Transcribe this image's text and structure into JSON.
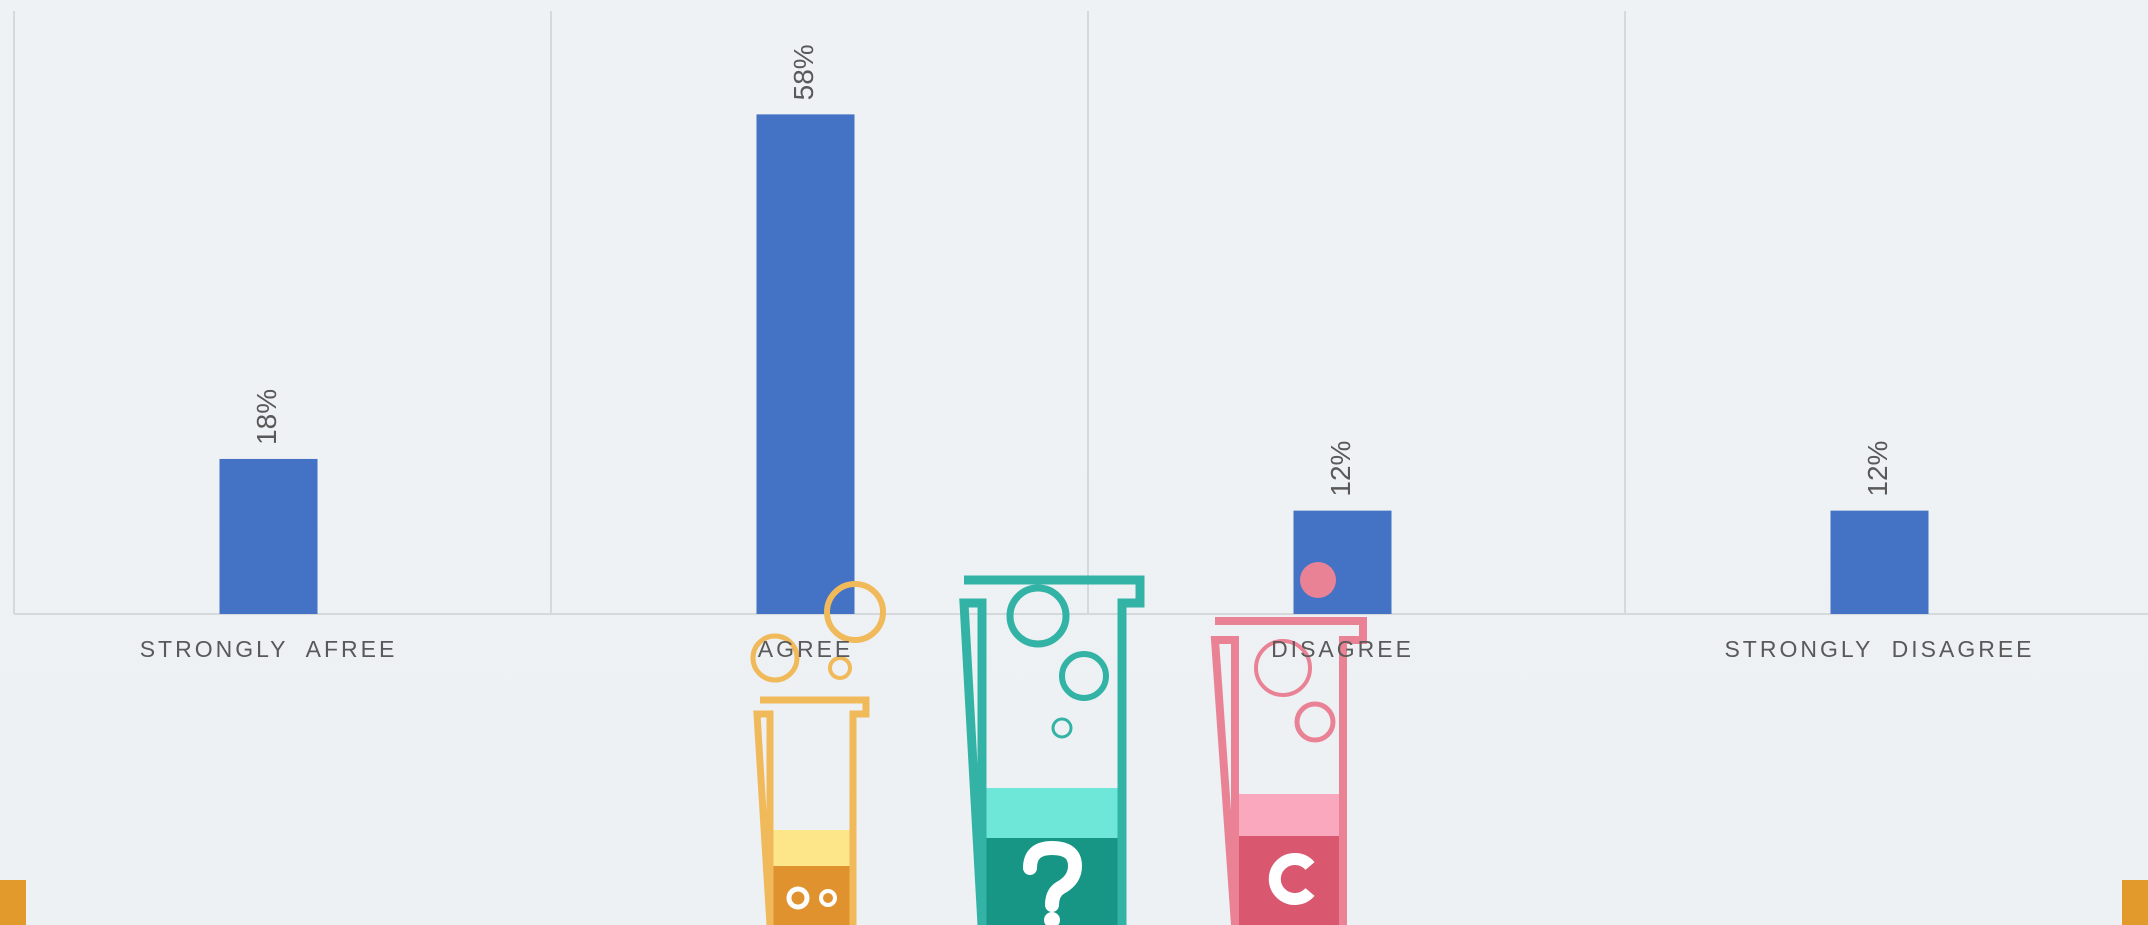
{
  "chart_data": {
    "type": "bar",
    "categories": [
      "STRONGLY  AFREE",
      "AGREE",
      "DISAGREE",
      "STRONGLY  DISAGREE"
    ],
    "values": [
      18,
      58,
      12,
      12
    ],
    "value_labels": [
      "18%",
      "58%",
      "12%",
      "12%"
    ],
    "color": "#4472c4",
    "ylim": [
      0,
      70
    ]
  }
}
